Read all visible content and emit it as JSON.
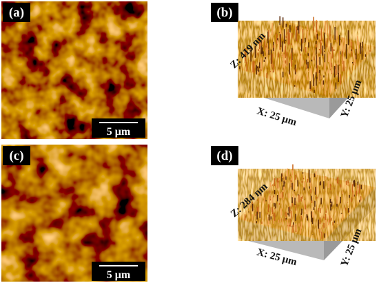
{
  "panels": [
    {
      "label": "(a)",
      "scale_bar": "5 μm"
    },
    {
      "label": "(b)",
      "z_axis": "Z: 419 nm",
      "x_axis": "X: 25 μm",
      "y_axis": "Y: 25 μm"
    },
    {
      "label": "(c)",
      "scale_bar": "5 μm"
    },
    {
      "label": "(d)",
      "z_axis": "Z: 284 nm",
      "x_axis": "X: 25 μm",
      "y_axis": "Y: 25 μm"
    }
  ]
}
